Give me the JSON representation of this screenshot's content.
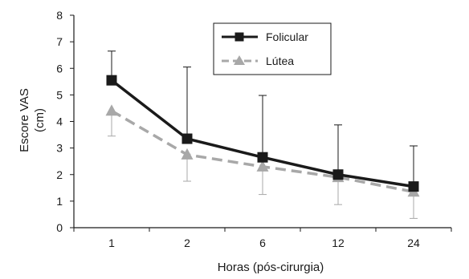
{
  "chart_data": {
    "type": "line",
    "categories": [
      "1",
      "2",
      "6",
      "12",
      "24"
    ],
    "xlabel": "Horas (pós-cirurgia)",
    "ylabel_lines": [
      "Escore VAS",
      "(cm)"
    ],
    "ylim": [
      0,
      8
    ],
    "yticks": [
      0,
      1,
      2,
      3,
      4,
      5,
      6,
      7,
      8
    ],
    "grid": false,
    "legend_position": "top-right",
    "series": [
      {
        "name": "Folicular",
        "values": [
          5.55,
          3.35,
          2.65,
          2.0,
          1.55
        ],
        "error_upper": [
          6.65,
          6.05,
          4.98,
          3.87,
          3.08
        ],
        "color": "#1a1a1a",
        "marker": "square",
        "line": "solid"
      },
      {
        "name": "Lútea",
        "values": [
          4.4,
          2.75,
          2.3,
          1.9,
          1.35
        ],
        "error_lower": [
          3.45,
          1.75,
          1.25,
          0.87,
          0.35
        ],
        "color": "#a8a8a8",
        "marker": "triangle",
        "line": "dashed"
      }
    ]
  }
}
